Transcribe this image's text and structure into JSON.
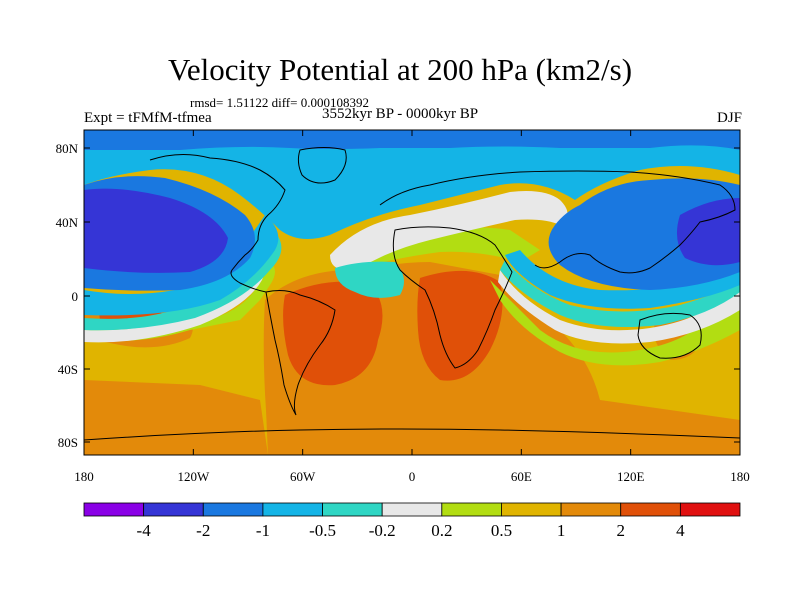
{
  "title": "Velocity Potential at 200 hPa (km2/s)",
  "stats": "rmsd= 1.51122 diff= 0.000108392",
  "period": "3552kyr BP - 0000kyr BP",
  "experiment": "Expt = tFMfM-tfmea",
  "season": "DJF",
  "lat_ticks": [
    "80N",
    "40N",
    "0",
    "40S",
    "80S"
  ],
  "lon_ticks": [
    "180",
    "120W",
    "60W",
    "0",
    "60E",
    "120E",
    "180"
  ],
  "colorbar": {
    "labels": [
      "-4",
      "-2",
      "-1",
      "-0.5",
      "-0.2",
      "0.2",
      "0.5",
      "1",
      "2",
      "4"
    ],
    "colors": [
      "#8a00e6",
      "#3535d6",
      "#1a78e0",
      "#14b4e6",
      "#2fd6c4",
      "#e8e8e8",
      "#b2dd12",
      "#e0b400",
      "#e38a0a",
      "#e05008",
      "#e01010"
    ]
  },
  "map_colors": {
    "bg": "#e0b400",
    "orange": "#e38a0a",
    "red": "#e05008",
    "yellow": "#b2dd12",
    "white": "#e8e8e8",
    "teal": "#2fd6c4",
    "cyan": "#14b4e6",
    "blue": "#1a78e0",
    "dark": "#3535d6",
    "coast": "#000000"
  }
}
